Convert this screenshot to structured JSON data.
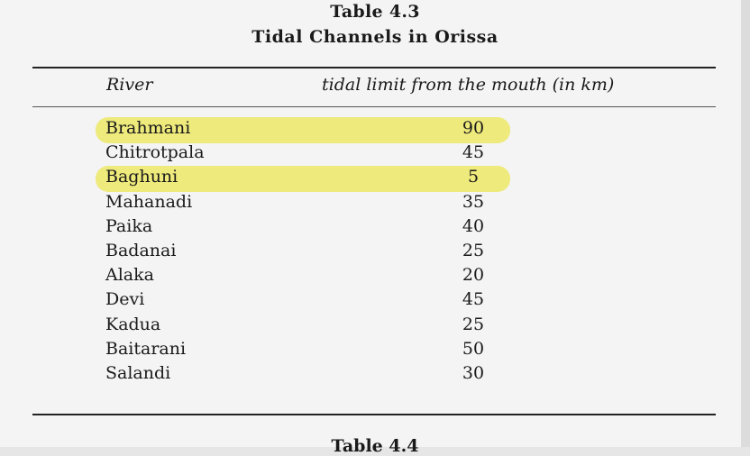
{
  "table": {
    "number": "Table 4.3",
    "title": "Tidal Channels in Orissa",
    "columns": {
      "river": "River",
      "tidal_limit": "tidal limit from the mouth (in km)"
    },
    "rows": [
      {
        "river": "Brahmani",
        "limit": "90",
        "highlighted": true
      },
      {
        "river": "Chitrotpala",
        "limit": "45",
        "highlighted": false
      },
      {
        "river": "Baghuni",
        "limit": "5",
        "highlighted": true
      },
      {
        "river": "Mahanadi",
        "limit": "35",
        "highlighted": false
      },
      {
        "river": "Paika",
        "limit": "40",
        "highlighted": false
      },
      {
        "river": "Badanai",
        "limit": "25",
        "highlighted": false
      },
      {
        "river": "Alaka",
        "limit": "20",
        "highlighted": false
      },
      {
        "river": "Devi",
        "limit": "45",
        "highlighted": false
      },
      {
        "river": "Kadua",
        "limit": "25",
        "highlighted": false
      },
      {
        "river": "Baitarani",
        "limit": "50",
        "highlighted": false
      },
      {
        "river": "Salandi",
        "limit": "30",
        "highlighted": false
      }
    ],
    "highlight_color": "#eeea7c"
  },
  "next_table_label": "Table 4.4"
}
